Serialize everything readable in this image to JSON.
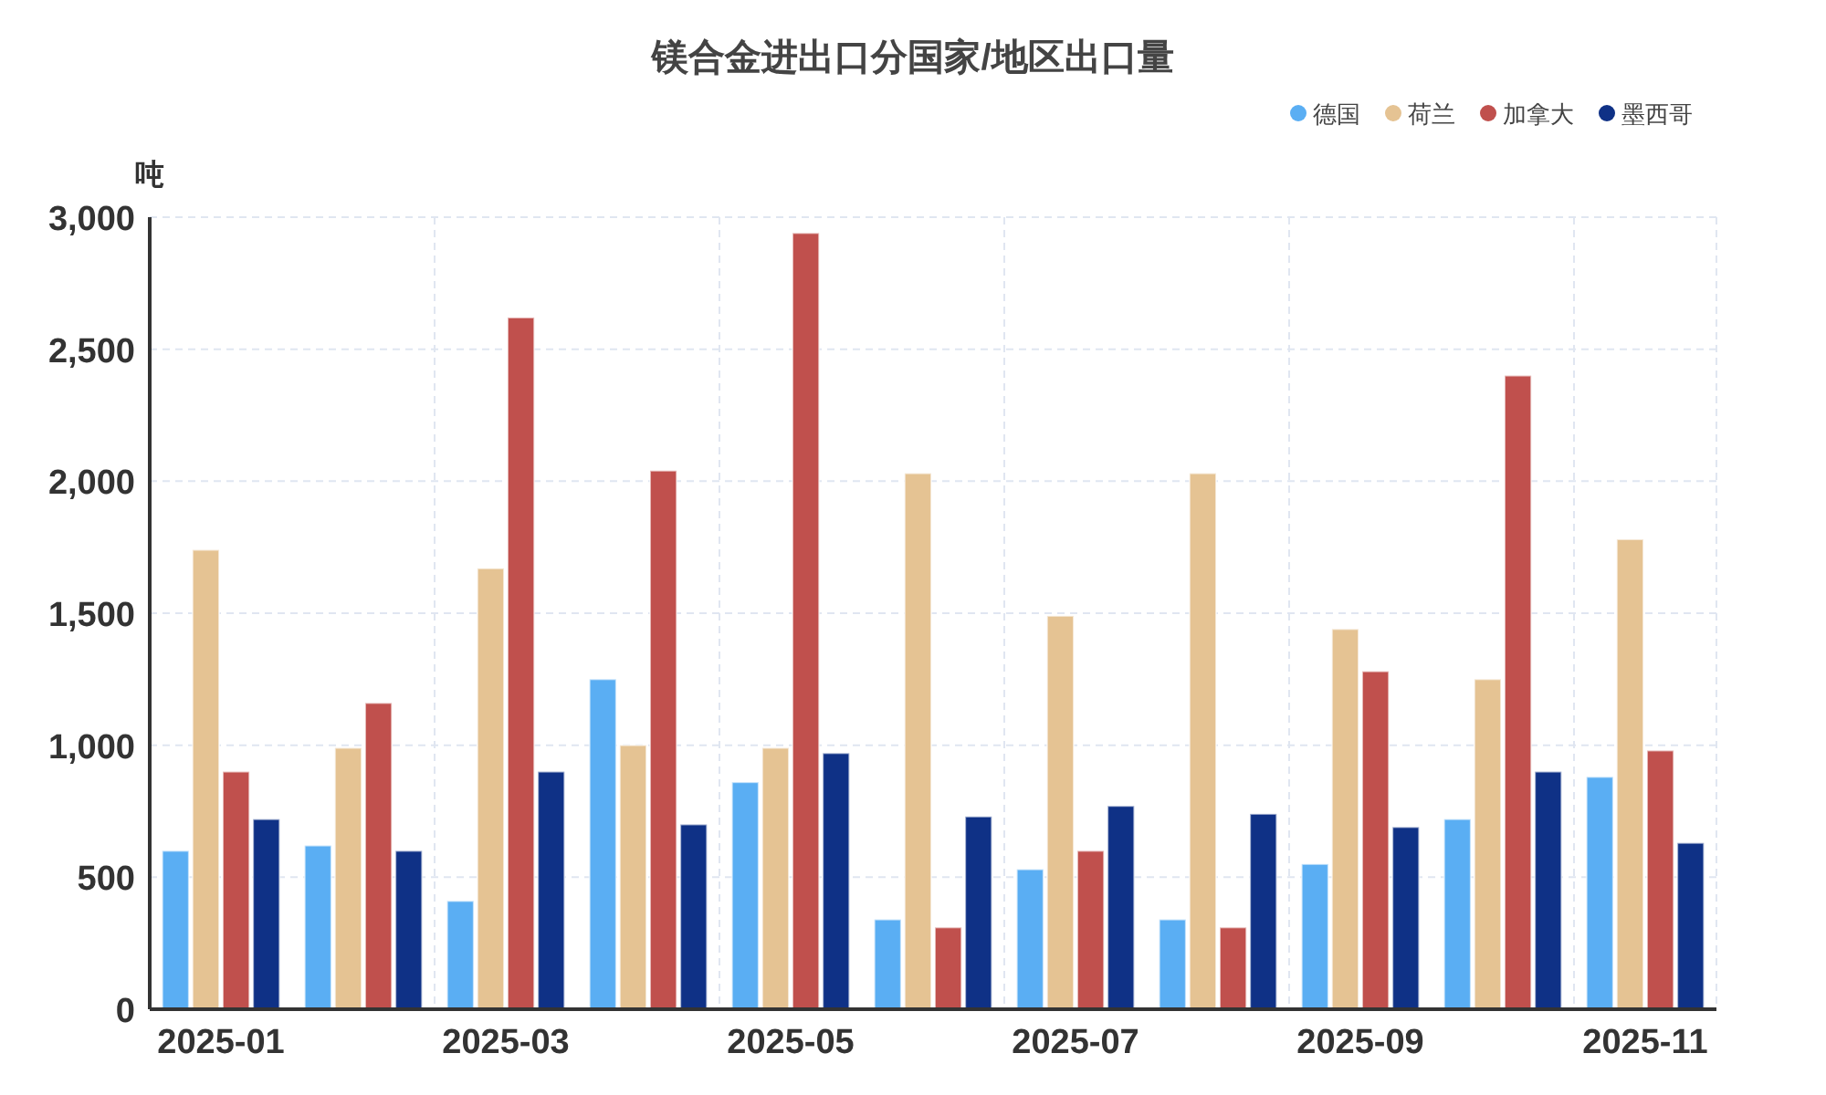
{
  "chart_data": {
    "type": "bar",
    "title": "镁合金进出口分国家/地区出口量",
    "ylabel": "吨",
    "categories": [
      "2025-01",
      null,
      "2025-03",
      null,
      "2025-05",
      null,
      "2025-07",
      null,
      "2025-09",
      null,
      "2025-11"
    ],
    "series": [
      {
        "name": "德国",
        "color": "#5aaef3",
        "values": [
          600,
          620,
          410,
          1250,
          860,
          340,
          530,
          340,
          550,
          720,
          880
        ]
      },
      {
        "name": "荷兰",
        "color": "#e5c393",
        "values": [
          1740,
          990,
          1670,
          1000,
          990,
          2030,
          1490,
          2030,
          1440,
          1250,
          1780
        ]
      },
      {
        "name": "加拿大",
        "color": "#c0504d",
        "values": [
          900,
          1160,
          2620,
          2040,
          2940,
          310,
          600,
          310,
          1280,
          2400,
          980
        ]
      },
      {
        "name": "墨西哥",
        "color": "#0f3186",
        "values": [
          720,
          600,
          900,
          700,
          970,
          730,
          770,
          740,
          690,
          900,
          630
        ]
      }
    ],
    "ylim": [
      0,
      3000
    ],
    "yticks": [
      {
        "value": 0,
        "label": "0"
      },
      {
        "value": 500,
        "label": "500"
      },
      {
        "value": 1000,
        "label": "1,000"
      },
      {
        "value": 1500,
        "label": "1,500"
      },
      {
        "value": 2000,
        "label": "2,000"
      },
      {
        "value": 2500,
        "label": "2,500"
      },
      {
        "value": 3000,
        "label": "3,000"
      }
    ],
    "grid": true,
    "legend": "top right"
  }
}
